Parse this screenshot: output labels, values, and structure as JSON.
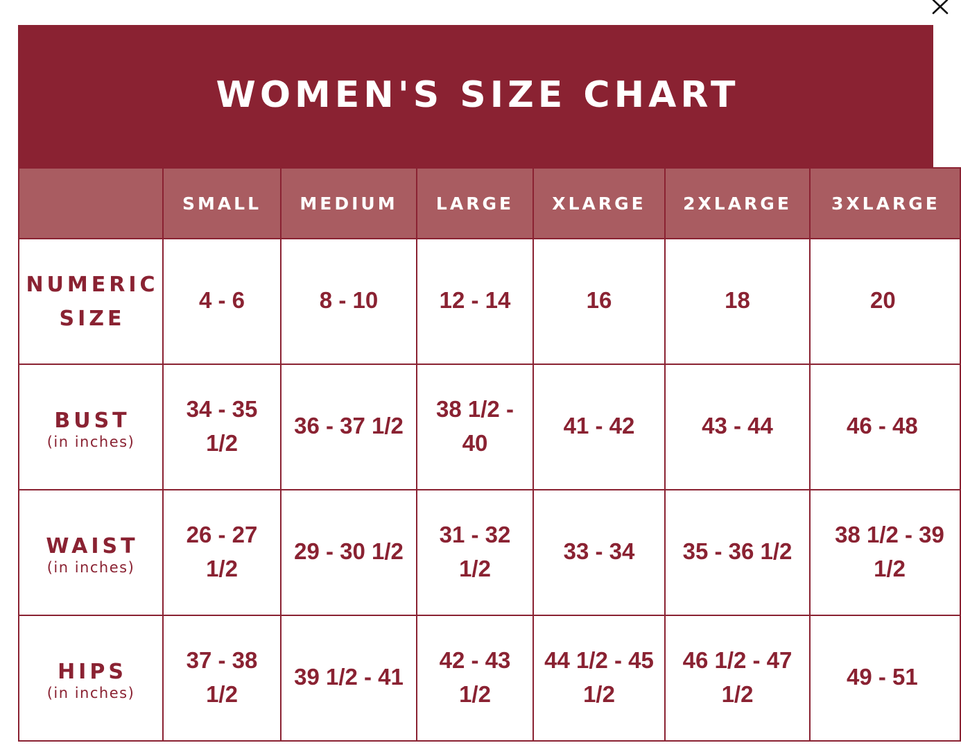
{
  "dialog": {
    "close_label": "×"
  },
  "chart": {
    "title": "WOMEN'S SIZE CHART",
    "colors": {
      "header_bg": "#8a2232",
      "column_header_bg": "#a95c61",
      "text": "#8a2232",
      "header_text": "#ffffff"
    },
    "columns": [
      "SMALL",
      "MEDIUM",
      "LARGE",
      "XLARGE",
      "2XLARGE",
      "3XLARGE"
    ],
    "rows": [
      {
        "name_line1": "NUMERIC",
        "name_line2": "SIZE",
        "unit": "",
        "values": [
          "4 - 6",
          "8 - 10",
          "12 - 14",
          "16",
          "18",
          "20"
        ]
      },
      {
        "name_line1": "BUST",
        "name_line2": "",
        "unit": "(in inches)",
        "values": [
          "34 - 35 1/2",
          "36 - 37 1/2",
          "38 1/2 - 40",
          "41 - 42",
          "43 - 44",
          "46 - 48"
        ]
      },
      {
        "name_line1": "WAIST",
        "name_line2": "",
        "unit": "(in inches)",
        "values": [
          "26 - 27 1/2",
          "29 - 30 1/2",
          "31 - 32 1/2",
          "33 - 34",
          "35 - 36 1/2",
          "38 1/2 - 39 1/2"
        ]
      },
      {
        "name_line1": "HIPS",
        "name_line2": "",
        "unit": "(in inches)",
        "values": [
          "37 - 38 1/2",
          "39 1/2 - 41",
          "42 - 43 1/2",
          "44 1/2 - 45 1/2",
          "46 1/2 - 47 1/2",
          "49 - 51"
        ]
      }
    ]
  }
}
